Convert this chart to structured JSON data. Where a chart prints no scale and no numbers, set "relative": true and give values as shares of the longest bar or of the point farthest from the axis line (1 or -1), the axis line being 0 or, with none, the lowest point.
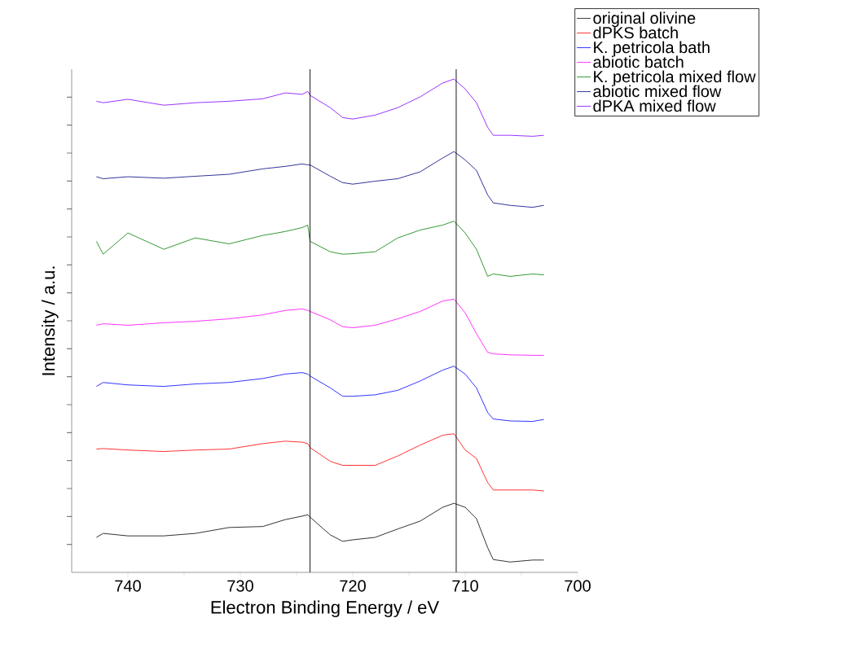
{
  "chart_data": {
    "type": "line",
    "xlabel": "Electron Binding Energy / eV",
    "ylabel": "Intensity / a.u.",
    "relative": true,
    "x": [
      742.8,
      742.2,
      740,
      736.8,
      734,
      731,
      728,
      726,
      724.5,
      724,
      723.8,
      722,
      720.9,
      720,
      718,
      716,
      714,
      712,
      711,
      710,
      709,
      708,
      707.5,
      706,
      704,
      703
    ],
    "xlim": [
      745,
      700
    ],
    "xticks": [
      740,
      730,
      720,
      710,
      700
    ],
    "legend": "top right",
    "marker": "none",
    "line_style": "solid",
    "ref_lines": [
      {
        "axis": "x",
        "value": 723.8,
        "color": "#000000"
      },
      {
        "axis": "x",
        "value": 710.8,
        "color": "#000000"
      }
    ],
    "series": [
      {
        "name": "original olivine",
        "color": "#000000",
        "values": [
          0.071,
          0.079,
          0.074,
          0.074,
          0.079,
          0.091,
          0.093,
          0.107,
          0.114,
          0.117,
          0.112,
          0.076,
          0.063,
          0.066,
          0.071,
          0.088,
          0.104,
          0.132,
          0.14,
          0.132,
          0.109,
          0.05,
          0.026,
          0.021,
          0.025,
          0.025
        ]
      },
      {
        "name": "dPKS batch",
        "color": "#ff0000",
        "values": [
          0.25,
          0.251,
          0.248,
          0.245,
          0.248,
          0.25,
          0.261,
          0.266,
          0.264,
          0.261,
          0.253,
          0.225,
          0.217,
          0.217,
          0.217,
          0.236,
          0.258,
          0.278,
          0.281,
          0.248,
          0.231,
          0.182,
          0.167,
          0.167,
          0.167,
          0.165
        ]
      },
      {
        "name": "K. petricola bath",
        "color": "#0000ff",
        "values": [
          0.377,
          0.385,
          0.38,
          0.377,
          0.382,
          0.385,
          0.393,
          0.402,
          0.405,
          0.402,
          0.398,
          0.374,
          0.357,
          0.357,
          0.36,
          0.369,
          0.388,
          0.41,
          0.418,
          0.402,
          0.374,
          0.324,
          0.311,
          0.307,
          0.306,
          0.31
        ]
      },
      {
        "name": "abiotic batch",
        "color": "#ff00ff",
        "values": [
          0.501,
          0.504,
          0.501,
          0.506,
          0.509,
          0.514,
          0.522,
          0.531,
          0.534,
          0.531,
          0.529,
          0.512,
          0.498,
          0.496,
          0.501,
          0.514,
          0.529,
          0.55,
          0.554,
          0.526,
          0.484,
          0.446,
          0.443,
          0.441,
          0.44,
          0.44
        ]
      },
      {
        "name": "K. petricola mixed flow",
        "color": "#008000",
        "values": [
          0.671,
          0.645,
          0.688,
          0.655,
          0.678,
          0.666,
          0.683,
          0.691,
          0.699,
          0.704,
          0.671,
          0.65,
          0.645,
          0.646,
          0.65,
          0.678,
          0.694,
          0.704,
          0.712,
          0.688,
          0.655,
          0.6,
          0.605,
          0.6,
          0.605,
          0.603
        ]
      },
      {
        "name": "abiotic mixed flow",
        "color": "#000080",
        "values": [
          0.802,
          0.798,
          0.802,
          0.799,
          0.803,
          0.807,
          0.818,
          0.823,
          0.828,
          0.826,
          0.826,
          0.803,
          0.79,
          0.787,
          0.793,
          0.798,
          0.812,
          0.84,
          0.853,
          0.836,
          0.815,
          0.765,
          0.749,
          0.744,
          0.74,
          0.744
        ]
      },
      {
        "name": "dPKA mixed flow",
        "color": "#8000ff",
        "values": [
          0.955,
          0.952,
          0.959,
          0.947,
          0.952,
          0.955,
          0.96,
          0.972,
          0.969,
          0.975,
          0.967,
          0.942,
          0.922,
          0.919,
          0.927,
          0.942,
          0.964,
          0.992,
          1.0,
          0.98,
          0.952,
          0.902,
          0.886,
          0.886,
          0.884,
          0.886
        ]
      }
    ]
  }
}
